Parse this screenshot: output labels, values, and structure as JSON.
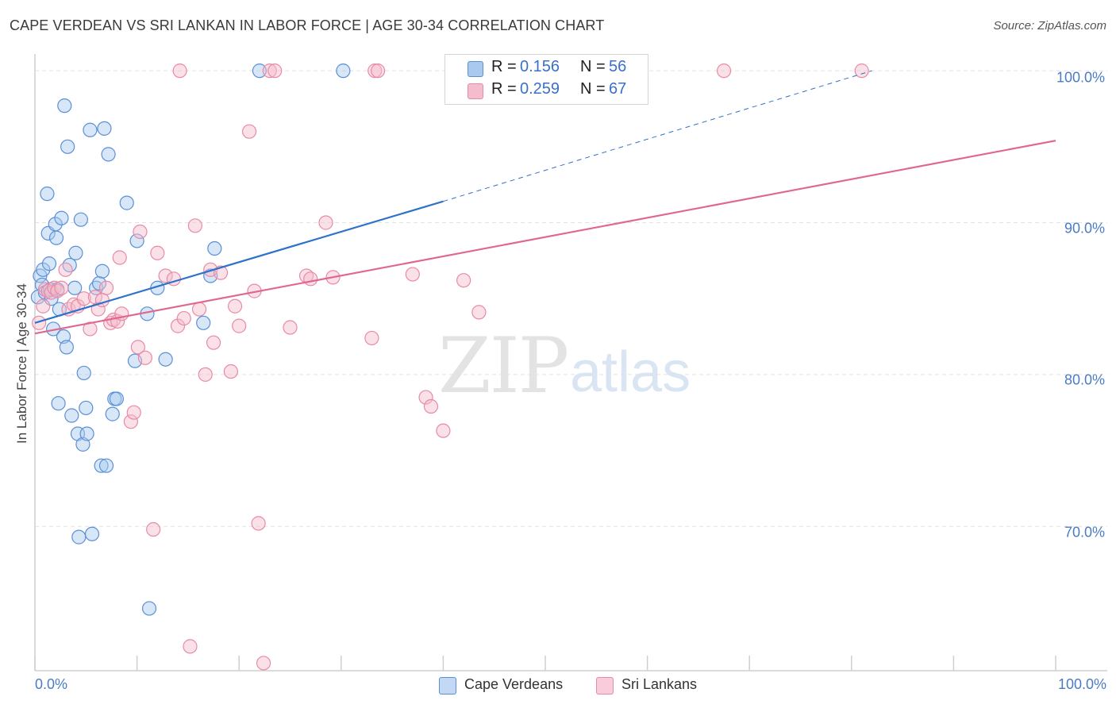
{
  "header": {
    "title": "CAPE VERDEAN VS SRI LANKAN IN LABOR FORCE | AGE 30-34 CORRELATION CHART",
    "source": "Source: ZipAtlas.com"
  },
  "watermark": {
    "zip": "ZIP",
    "atlas": "atlas"
  },
  "legend": {
    "rows": [
      {
        "r_label": "R =",
        "r_value": "0.156",
        "n_label": "N =",
        "n_value": "56"
      },
      {
        "r_label": "R =",
        "r_value": "0.259",
        "n_label": "N =",
        "n_value": "67"
      }
    ]
  },
  "bottom_legend": {
    "series1": "Cape Verdeans",
    "series2": "Sri Lankans"
  },
  "colors": {
    "blue_fill": "#a9c9ef",
    "blue_stroke": "#5b8fd6",
    "blue_line": "#2f72c9",
    "pink_fill": "#f5bccd",
    "pink_stroke": "#e88aa6",
    "pink_line": "#e0678f",
    "grid": "#e2e2e2",
    "tick_text": "#4a7cc4"
  },
  "chart_data": {
    "type": "scatter",
    "title": "CAPE VERDEAN VS SRI LANKAN IN LABOR FORCE | AGE 30-34 CORRELATION CHART",
    "xlabel": "",
    "ylabel": "In Labor Force | Age 30-34",
    "xlim": [
      0,
      100
    ],
    "ylim": [
      60.5,
      101
    ],
    "x_tick_labels": [
      "0.0%",
      "100.0%"
    ],
    "y_ticks": [
      70,
      80,
      90,
      100
    ],
    "y_tick_labels": [
      "70.0%",
      "80.0%",
      "90.0%",
      "100.0%"
    ],
    "series": [
      {
        "name": "Cape Verdeans",
        "R": 0.156,
        "N": 56,
        "trend": {
          "x0": 0,
          "y0": 83.4,
          "x1": 40,
          "y1": 91.4,
          "dash_x1": 82,
          "dash_y1": 100
        },
        "points": [
          [
            0.3,
            85.1
          ],
          [
            0.5,
            86.5
          ],
          [
            0.7,
            85.9
          ],
          [
            0.8,
            86.9
          ],
          [
            1.0,
            85.4
          ],
          [
            1.2,
            91.9
          ],
          [
            1.3,
            89.3
          ],
          [
            1.4,
            87.3
          ],
          [
            1.6,
            85.0
          ],
          [
            1.8,
            83.0
          ],
          [
            2.0,
            89.9
          ],
          [
            2.1,
            89.0
          ],
          [
            2.3,
            78.1
          ],
          [
            2.4,
            84.3
          ],
          [
            2.6,
            90.3
          ],
          [
            2.8,
            82.5
          ],
          [
            2.9,
            97.7
          ],
          [
            3.1,
            81.8
          ],
          [
            3.2,
            95.0
          ],
          [
            3.4,
            87.2
          ],
          [
            3.6,
            77.3
          ],
          [
            3.9,
            85.7
          ],
          [
            4.0,
            88.0
          ],
          [
            4.2,
            76.1
          ],
          [
            4.3,
            69.3
          ],
          [
            4.5,
            90.2
          ],
          [
            4.7,
            75.4
          ],
          [
            4.8,
            80.1
          ],
          [
            5.0,
            77.8
          ],
          [
            5.1,
            76.1
          ],
          [
            5.4,
            96.1
          ],
          [
            5.6,
            69.5
          ],
          [
            6.0,
            85.7
          ],
          [
            6.3,
            86.0
          ],
          [
            6.5,
            74.0
          ],
          [
            6.6,
            86.8
          ],
          [
            6.8,
            96.2
          ],
          [
            7.0,
            74.0
          ],
          [
            7.2,
            94.5
          ],
          [
            7.6,
            77.4
          ],
          [
            7.8,
            78.4
          ],
          [
            8.0,
            78.4
          ],
          [
            9.0,
            91.3
          ],
          [
            9.8,
            80.9
          ],
          [
            10.0,
            88.8
          ],
          [
            11.0,
            84.0
          ],
          [
            11.2,
            64.6
          ],
          [
            12.0,
            85.7
          ],
          [
            12.8,
            81.0
          ],
          [
            16.5,
            83.4
          ],
          [
            17.2,
            86.5
          ],
          [
            17.6,
            88.3
          ],
          [
            22.0,
            100.0
          ],
          [
            30.2,
            100.0
          ],
          [
            1.5,
            85.6
          ],
          [
            2.2,
            85.6
          ]
        ]
      },
      {
        "name": "Sri Lankans",
        "R": 0.259,
        "N": 67,
        "trend": {
          "x0": 0,
          "y0": 82.7,
          "x1": 100,
          "y1": 95.4
        },
        "points": [
          [
            0.4,
            83.4
          ],
          [
            0.8,
            84.5
          ],
          [
            1.0,
            85.6
          ],
          [
            1.3,
            85.5
          ],
          [
            1.6,
            85.4
          ],
          [
            1.9,
            85.7
          ],
          [
            2.2,
            85.5
          ],
          [
            2.6,
            85.7
          ],
          [
            3.0,
            86.9
          ],
          [
            3.3,
            84.3
          ],
          [
            3.8,
            84.6
          ],
          [
            4.2,
            84.5
          ],
          [
            4.8,
            85.0
          ],
          [
            5.4,
            83.0
          ],
          [
            5.9,
            85.1
          ],
          [
            6.2,
            84.3
          ],
          [
            6.6,
            84.9
          ],
          [
            7.0,
            85.7
          ],
          [
            7.4,
            83.4
          ],
          [
            7.7,
            83.6
          ],
          [
            8.1,
            83.5
          ],
          [
            8.3,
            87.7
          ],
          [
            8.5,
            84.0
          ],
          [
            9.4,
            76.9
          ],
          [
            9.7,
            77.5
          ],
          [
            10.1,
            81.8
          ],
          [
            10.3,
            89.4
          ],
          [
            10.8,
            81.1
          ],
          [
            11.6,
            69.8
          ],
          [
            12.0,
            88.0
          ],
          [
            12.8,
            86.5
          ],
          [
            13.6,
            86.3
          ],
          [
            14.0,
            83.2
          ],
          [
            14.6,
            83.7
          ],
          [
            15.2,
            62.1
          ],
          [
            15.7,
            89.8
          ],
          [
            16.1,
            84.3
          ],
          [
            16.7,
            80.0
          ],
          [
            17.2,
            86.9
          ],
          [
            17.5,
            82.1
          ],
          [
            18.2,
            86.7
          ],
          [
            19.2,
            80.2
          ],
          [
            19.6,
            84.5
          ],
          [
            20.0,
            83.2
          ],
          [
            21.0,
            96.0
          ],
          [
            21.5,
            85.5
          ],
          [
            21.9,
            70.2
          ],
          [
            22.4,
            61.0
          ],
          [
            23.0,
            100.0
          ],
          [
            23.5,
            100.0
          ],
          [
            25.0,
            83.1
          ],
          [
            26.6,
            86.5
          ],
          [
            27.0,
            86.3
          ],
          [
            28.5,
            90.0
          ],
          [
            29.2,
            86.4
          ],
          [
            33.0,
            82.4
          ],
          [
            33.3,
            100.0
          ],
          [
            33.6,
            100.0
          ],
          [
            37.0,
            86.6
          ],
          [
            38.3,
            78.5
          ],
          [
            38.8,
            77.9
          ],
          [
            40.0,
            76.3
          ],
          [
            42.0,
            86.2
          ],
          [
            43.5,
            84.1
          ],
          [
            67.5,
            100.0
          ],
          [
            81.0,
            100.0
          ],
          [
            14.2,
            100.0
          ]
        ]
      }
    ]
  }
}
